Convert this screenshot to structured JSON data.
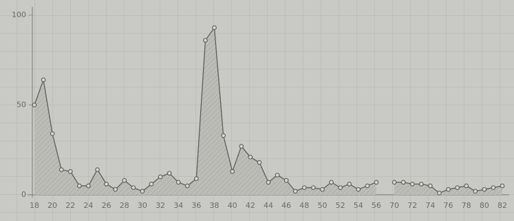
{
  "chart_data": {
    "type": "line",
    "categories": [
      "18",
      null,
      "20",
      null,
      "22",
      null,
      "24",
      null,
      "26",
      null,
      "28",
      null,
      "30",
      null,
      "32",
      null,
      "34",
      null,
      "36",
      null,
      "38",
      null,
      "40",
      null,
      "42",
      null,
      "44",
      null,
      "46",
      null,
      "48",
      null,
      "50",
      null,
      "52",
      null,
      "54",
      null,
      "56",
      null,
      "70",
      null,
      "72",
      null,
      "74",
      null,
      "76",
      null,
      "78",
      null,
      "80",
      null,
      "82"
    ],
    "values": [
      50,
      64,
      34,
      14,
      13,
      5,
      5,
      14,
      6,
      3,
      8,
      4,
      2,
      6,
      10,
      12,
      7,
      5,
      9,
      86,
      93,
      33,
      13,
      27,
      21,
      18,
      7,
      11,
      8,
      2,
      4,
      4,
      3,
      7,
      4,
      6,
      3,
      5,
      7,
      null,
      7,
      7,
      6,
      6,
      5,
      1,
      3,
      4,
      5,
      2,
      3,
      4,
      5
    ],
    "color": "#5c5c58",
    "ylim": [
      0,
      100
    ],
    "yticks": [
      0,
      50,
      100
    ]
  }
}
